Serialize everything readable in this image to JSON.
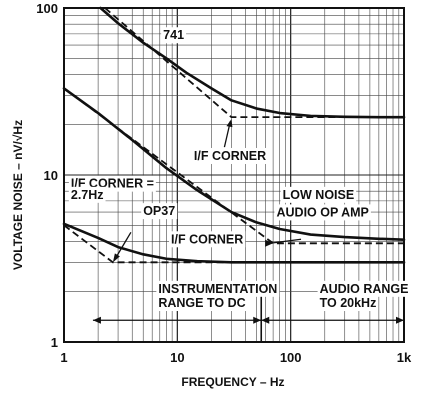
{
  "chart_data": {
    "type": "line",
    "xscale": "log",
    "yscale": "log",
    "xlim": [
      1,
      1000
    ],
    "ylim": [
      1,
      100
    ],
    "grid": true,
    "xlabel": "FREQUENCY – Hz",
    "ylabel": "VOLTAGE NOISE – nV/√Hz",
    "xticks": [
      {
        "value": 1,
        "label": "1"
      },
      {
        "value": 10,
        "label": "10"
      },
      {
        "value": 100,
        "label": "100"
      },
      {
        "value": 1000,
        "label": "1k"
      }
    ],
    "yticks": [
      {
        "value": 1,
        "label": "1"
      },
      {
        "value": 10,
        "label": "10"
      },
      {
        "value": 100,
        "label": "100"
      }
    ],
    "series": [
      {
        "name": "741",
        "style": "solid",
        "x": [
          2.1,
          3,
          5,
          8,
          12,
          20,
          30,
          50,
          80,
          150,
          300,
          600,
          1000
        ],
        "y": [
          100,
          81,
          62,
          50,
          41,
          33,
          28,
          25,
          23.5,
          22.6,
          22.3,
          22.2,
          22.2
        ]
      },
      {
        "name": "",
        "style": "dashed",
        "x": [
          2.3,
          30,
          1000
        ],
        "y": [
          100,
          22.2,
          22.2
        ]
      },
      {
        "name": "LOW NOISE AUDIO OP AMP",
        "style": "solid",
        "x": [
          1,
          2,
          4,
          8,
          15,
          30,
          50,
          80,
          150,
          300,
          600,
          1000
        ],
        "y": [
          33,
          23.5,
          16.2,
          11,
          8.1,
          6,
          5.2,
          4.75,
          4.4,
          4.25,
          4.15,
          4.1
        ]
      },
      {
        "name": "",
        "style": "dashed",
        "x": [
          1,
          70,
          1000
        ],
        "y": [
          33,
          3.9,
          3.9
        ]
      },
      {
        "name": "OP37",
        "style": "solid",
        "x": [
          1,
          2,
          3,
          5,
          8,
          15,
          30,
          100,
          300,
          1000
        ],
        "y": [
          5.1,
          4.2,
          3.7,
          3.35,
          3.15,
          3.05,
          3.0,
          3.0,
          3.0,
          3.0
        ]
      },
      {
        "name": "",
        "style": "dashed",
        "x": [
          1,
          2.7,
          1000
        ],
        "y": [
          5.0,
          3.0,
          3.0
        ]
      }
    ],
    "annotations": [
      {
        "id": "label-741",
        "text": "741",
        "x": 7.5,
        "y": 65
      },
      {
        "id": "corner-741-label",
        "text": "I/F CORNER",
        "x": 14,
        "y": 12.3
      },
      {
        "id": "corner-op37-line1",
        "text": "I/F CORNER =",
        "x": 1.15,
        "y": 8.4
      },
      {
        "id": "corner-op37-line2",
        "text": "2.7Hz",
        "x": 1.15,
        "y": 7.2
      },
      {
        "id": "label-op37",
        "text": "OP37",
        "x": 5,
        "y": 5.75
      },
      {
        "id": "lownoise-line1",
        "text": "LOW NOISE",
        "x": 85,
        "y": 7.2
      },
      {
        "id": "lownoise-line2",
        "text": "AUDIO OP AMP",
        "x": 75,
        "y": 5.65
      },
      {
        "id": "corner-lownoise-label",
        "text": "I/F CORNER",
        "x": 8.8,
        "y": 3.9
      },
      {
        "id": "instr-line1",
        "text": "INSTRUMENTATION",
        "x": 6.8,
        "y": 1.97
      },
      {
        "id": "instr-line2",
        "text": "RANGE TO DC",
        "x": 6.8,
        "y": 1.62
      },
      {
        "id": "audio-line1",
        "text": "AUDIO RANGE",
        "x": 180,
        "y": 1.97
      },
      {
        "id": "audio-line2",
        "text": "TO 20kHz",
        "x": 180,
        "y": 1.62
      }
    ],
    "ranges": [
      {
        "name": "INSTRUMENTATION RANGE TO DC",
        "from": 1.8,
        "to": 55
      },
      {
        "name": "AUDIO RANGE TO 20kHz",
        "from": 55,
        "to": 1000
      }
    ],
    "markers": [
      {
        "x": 30,
        "y": 22.2
      },
      {
        "x": 2.7,
        "y": 3.0
      },
      {
        "x": 70,
        "y": 3.9
      }
    ]
  }
}
